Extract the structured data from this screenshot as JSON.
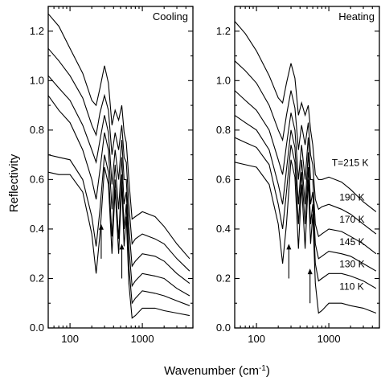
{
  "chart_data": {
    "type": "line",
    "ylabel": "Reflectivity",
    "xlabel": "Wavenumber (cm",
    "xlabel_superscript": "-1",
    "xlabel_close": ")",
    "x_scale": "log",
    "xlim": [
      50,
      5000
    ],
    "ylim": [
      0.0,
      1.3
    ],
    "y_ticks": [
      {
        "value": 0.0,
        "label": "0.0"
      },
      {
        "value": 0.2,
        "label": "0.2"
      },
      {
        "value": 0.4,
        "label": "0.4"
      },
      {
        "value": 0.6,
        "label": "0.6"
      },
      {
        "value": 0.8,
        "label": "0.8"
      },
      {
        "value": 1.0,
        "label": "1.0"
      },
      {
        "value": 1.2,
        "label": "1.2"
      }
    ],
    "x_ticks": [
      {
        "value": 100,
        "label": "100"
      },
      {
        "value": 1000,
        "label": "1000"
      }
    ],
    "panels": [
      {
        "title": "Cooling",
        "arrows": [
          {
            "x": 270,
            "y_tail": 0.28,
            "y_head": 0.42
          },
          {
            "x": 520,
            "y_tail": 0.2,
            "y_head": 0.34
          }
        ],
        "series": [
          {
            "x": [
              50,
              70,
              100,
              150,
              200,
              230,
              260,
              300,
              340,
              380,
              420,
              470,
              520,
              560,
              600,
              650,
              720,
              800,
              1000,
              1500,
              2000,
              3000,
              4500
            ],
            "y": [
              1.27,
              1.22,
              1.13,
              1.03,
              0.92,
              0.9,
              0.97,
              1.06,
              0.99,
              0.82,
              0.88,
              0.84,
              0.9,
              0.79,
              0.75,
              0.6,
              0.44,
              0.45,
              0.47,
              0.45,
              0.41,
              0.34,
              0.28
            ]
          },
          {
            "x": [
              50,
              70,
              100,
              150,
              200,
              230,
              260,
              300,
              340,
              380,
              420,
              470,
              520,
              560,
              600,
              650,
              720,
              800,
              1000,
              1500,
              2000,
              3000,
              4500
            ],
            "y": [
              1.13,
              1.08,
              1.02,
              0.93,
              0.82,
              0.78,
              0.87,
              0.94,
              0.88,
              0.7,
              0.79,
              0.72,
              0.82,
              0.69,
              0.67,
              0.5,
              0.34,
              0.36,
              0.38,
              0.36,
              0.34,
              0.28,
              0.23
            ]
          },
          {
            "x": [
              50,
              70,
              100,
              150,
              200,
              230,
              260,
              300,
              340,
              380,
              420,
              470,
              520,
              560,
              600,
              650,
              720,
              800,
              1000,
              1500,
              2000,
              3000,
              4500
            ],
            "y": [
              1.02,
              0.97,
              0.92,
              0.82,
              0.72,
              0.67,
              0.76,
              0.86,
              0.79,
              0.58,
              0.72,
              0.6,
              0.76,
              0.6,
              0.6,
              0.41,
              0.25,
              0.27,
              0.3,
              0.29,
              0.27,
              0.22,
              0.18
            ]
          },
          {
            "x": [
              50,
              70,
              100,
              150,
              200,
              230,
              260,
              300,
              340,
              380,
              420,
              470,
              520,
              560,
              600,
              650,
              720,
              800,
              1000,
              1500,
              2000,
              3000,
              4500
            ],
            "y": [
              0.94,
              0.88,
              0.83,
              0.72,
              0.6,
              0.52,
              0.64,
              0.79,
              0.72,
              0.48,
              0.66,
              0.48,
              0.69,
              0.5,
              0.55,
              0.33,
              0.17,
              0.19,
              0.22,
              0.21,
              0.2,
              0.16,
              0.13
            ]
          },
          {
            "x": [
              50,
              70,
              100,
              150,
              200,
              230,
              260,
              300,
              340,
              380,
              420,
              470,
              520,
              560,
              600,
              650,
              720,
              800,
              1000,
              1500,
              2000,
              3000,
              4500
            ],
            "y": [
              0.7,
              0.69,
              0.68,
              0.6,
              0.45,
              0.33,
              0.48,
              0.7,
              0.63,
              0.37,
              0.6,
              0.36,
              0.62,
              0.4,
              0.5,
              0.25,
              0.1,
              0.12,
              0.15,
              0.14,
              0.13,
              0.11,
              0.09
            ]
          },
          {
            "x": [
              50,
              70,
              100,
              150,
              200,
              230,
              260,
              300,
              340,
              380,
              420,
              470,
              520,
              560,
              600,
              650,
              720,
              800,
              1000,
              1500,
              2000,
              3000,
              4500
            ],
            "y": [
              0.63,
              0.62,
              0.62,
              0.55,
              0.38,
              0.22,
              0.38,
              0.65,
              0.58,
              0.3,
              0.56,
              0.3,
              0.58,
              0.33,
              0.45,
              0.18,
              0.04,
              0.05,
              0.08,
              0.08,
              0.07,
              0.06,
              0.05
            ]
          }
        ],
        "temperature_labels": []
      },
      {
        "title": "Heating",
        "arrows": [
          {
            "x": 280,
            "y_tail": 0.2,
            "y_head": 0.34
          },
          {
            "x": 550,
            "y_tail": 0.1,
            "y_head": 0.24
          }
        ],
        "series": [
          {
            "x": [
              50,
              70,
              100,
              150,
              200,
              230,
              260,
              300,
              340,
              380,
              420,
              470,
              520,
              560,
              600,
              650,
              720,
              800,
              1000,
              1500,
              2000,
              3000,
              4500
            ],
            "y": [
              1.24,
              1.19,
              1.12,
              1.02,
              0.93,
              0.91,
              0.99,
              1.07,
              1.01,
              0.86,
              0.91,
              0.86,
              0.9,
              0.8,
              0.74,
              0.62,
              0.6,
              0.6,
              0.61,
              0.59,
              0.56,
              0.51,
              0.47
            ]
          },
          {
            "x": [
              50,
              70,
              100,
              150,
              200,
              230,
              260,
              300,
              340,
              380,
              420,
              470,
              520,
              560,
              600,
              650,
              720,
              800,
              1000,
              1500,
              2000,
              3000,
              4500
            ],
            "y": [
              1.08,
              1.04,
              0.99,
              0.9,
              0.8,
              0.76,
              0.86,
              0.96,
              0.89,
              0.72,
              0.82,
              0.74,
              0.83,
              0.7,
              0.66,
              0.52,
              0.48,
              0.49,
              0.5,
              0.48,
              0.46,
              0.42,
              0.38
            ]
          },
          {
            "x": [
              50,
              70,
              100,
              150,
              200,
              230,
              260,
              300,
              340,
              380,
              420,
              470,
              520,
              560,
              600,
              650,
              720,
              800,
              1000,
              1500,
              2000,
              3000,
              4500
            ],
            "y": [
              0.96,
              0.92,
              0.88,
              0.8,
              0.68,
              0.62,
              0.74,
              0.87,
              0.8,
              0.6,
              0.74,
              0.6,
              0.77,
              0.6,
              0.6,
              0.42,
              0.37,
              0.38,
              0.4,
              0.39,
              0.37,
              0.34,
              0.3
            ]
          },
          {
            "x": [
              50,
              70,
              100,
              150,
              200,
              230,
              260,
              300,
              340,
              380,
              420,
              470,
              520,
              560,
              600,
              650,
              720,
              800,
              1000,
              1500,
              2000,
              3000,
              4500
            ],
            "y": [
              0.86,
              0.83,
              0.8,
              0.72,
              0.58,
              0.5,
              0.64,
              0.8,
              0.73,
              0.5,
              0.68,
              0.5,
              0.71,
              0.5,
              0.55,
              0.34,
              0.28,
              0.29,
              0.31,
              0.3,
              0.29,
              0.26,
              0.23
            ]
          },
          {
            "x": [
              50,
              70,
              100,
              150,
              200,
              230,
              260,
              300,
              340,
              380,
              420,
              470,
              520,
              560,
              600,
              650,
              720,
              800,
              1000,
              1500,
              2000,
              3000,
              4500
            ],
            "y": [
              0.77,
              0.75,
              0.73,
              0.66,
              0.5,
              0.4,
              0.55,
              0.74,
              0.67,
              0.42,
              0.63,
              0.42,
              0.65,
              0.42,
              0.5,
              0.26,
              0.19,
              0.2,
              0.22,
              0.22,
              0.21,
              0.19,
              0.16
            ]
          },
          {
            "x": [
              50,
              70,
              100,
              150,
              200,
              230,
              260,
              300,
              340,
              380,
              420,
              470,
              520,
              560,
              600,
              650,
              720,
              800,
              1000,
              1500,
              2000,
              3000,
              4500
            ],
            "y": [
              0.67,
              0.66,
              0.65,
              0.58,
              0.42,
              0.26,
              0.42,
              0.68,
              0.61,
              0.32,
              0.58,
              0.32,
              0.6,
              0.34,
              0.46,
              0.18,
              0.06,
              0.07,
              0.1,
              0.1,
              0.09,
              0.08,
              0.06
            ]
          }
        ],
        "temperature_labels": [
          {
            "text": "T=215 K",
            "x": 1100,
            "y": 0.655
          },
          {
            "text": "190 K",
            "x": 1400,
            "y": 0.515
          },
          {
            "text": "170 K",
            "x": 1400,
            "y": 0.425
          },
          {
            "text": "145 K",
            "x": 1400,
            "y": 0.335
          },
          {
            "text": "130 K",
            "x": 1400,
            "y": 0.245
          },
          {
            "text": "110 K",
            "x": 1400,
            "y": 0.155
          }
        ]
      }
    ]
  }
}
